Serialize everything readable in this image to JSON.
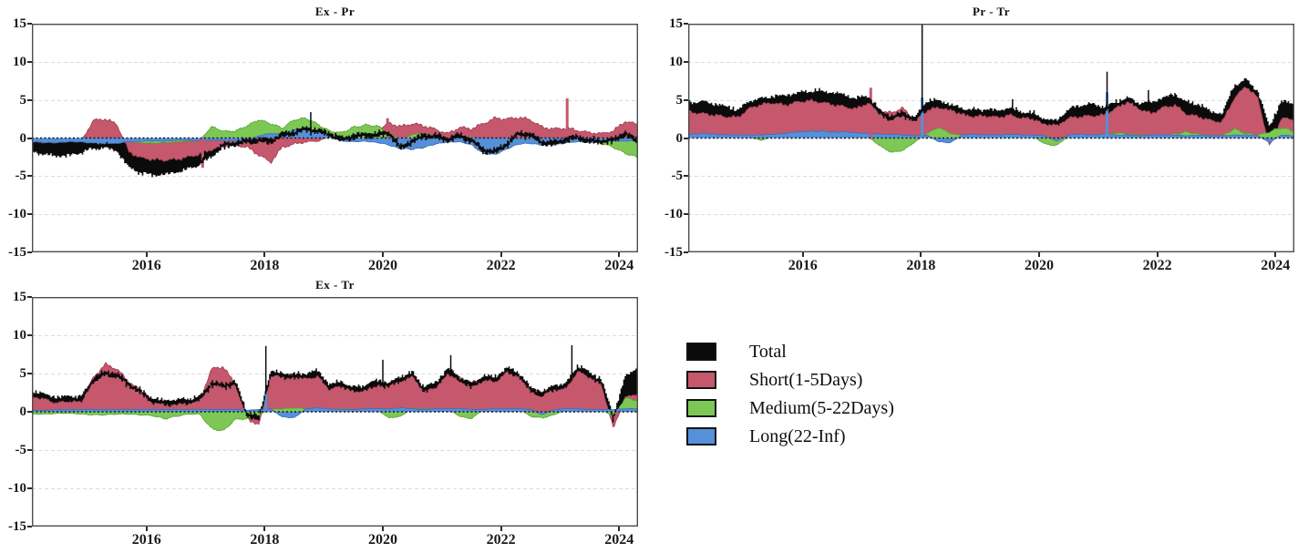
{
  "figure": {
    "background": "#ffffff"
  },
  "axes": {
    "y_tick_labels": [
      "15",
      "10",
      "5",
      "0",
      "-5",
      "-10",
      "-15"
    ],
    "y_tick_values": [
      15,
      10,
      5,
      0,
      -5,
      -10,
      -15
    ],
    "x_tick_labels": [
      "2016",
      "2018",
      "2020",
      "2022",
      "2024"
    ],
    "x_tick_values": [
      2016,
      2018,
      2020,
      2022,
      2024
    ],
    "grid_color": "#dcdcdc",
    "border_color": "#4d4d4d",
    "zero_line_color": "#17172e"
  },
  "legend": {
    "items": [
      {
        "label": "Total",
        "color": "#0b0b0b"
      },
      {
        "label": "Short(1-5Days)",
        "color": "#c5586c"
      },
      {
        "label": "Medium(5-22Days)",
        "color": "#7dc855"
      },
      {
        "label": "Long(22-Inf)",
        "color": "#5590d8"
      }
    ]
  },
  "chart_data": [
    {
      "panel": "Ex - Pr",
      "type": "area",
      "x_start": 2014.1,
      "x_step": 0.2,
      "xlim": [
        2014.06,
        2024.32
      ],
      "ylim": [
        -15,
        15
      ],
      "grid": true,
      "series": [
        {
          "name": "Total",
          "color": "#0b0b0b",
          "stroke": "#0b0b0b",
          "values": [
            -1.6,
            -1.9,
            -2.1,
            -2.0,
            -1.6,
            -1.1,
            -1.0,
            -1.4,
            -3.6,
            -4.3,
            -4.6,
            -4.5,
            -4.2,
            -3.8,
            -3.2,
            -2.2,
            -1.0,
            -0.7,
            -0.4,
            -0.3,
            -0.4,
            0.4,
            0.7,
            1.2,
            0.9,
            0.5,
            -0.2,
            0.2,
            0.4,
            0.4,
            0.7,
            -1.3,
            -0.4,
            0.3,
            0.2,
            -0.2,
            0.3,
            -0.3,
            -1.6,
            -1.8,
            -0.8,
            0.6,
            0.4,
            -0.6,
            -0.7,
            -0.2,
            0.1,
            -0.4,
            -0.4,
            -0.3,
            0.6,
            -0.4
          ]
        },
        {
          "name": "Short(1-5Days)",
          "color": "#c5586c",
          "stroke": "#9e3f52",
          "values": [
            -0.5,
            -0.6,
            -0.5,
            -0.4,
            -0.3,
            2.3,
            2.5,
            1.8,
            -1.8,
            -2.6,
            -2.8,
            -2.9,
            -2.8,
            -2.5,
            -2.1,
            -1.5,
            -1.1,
            -0.9,
            -1.2,
            -2.2,
            -3.2,
            -1.2,
            -0.8,
            -0.5,
            -0.4,
            0.2,
            -0.3,
            0.3,
            0.5,
            0.8,
            2.0,
            1.5,
            1.9,
            1.6,
            1.1,
            0.6,
            1.4,
            1.2,
            1.9,
            2.6,
            2.5,
            2.7,
            2.4,
            1.4,
            1.2,
            1.3,
            1.0,
            0.7,
            0.6,
            0.9,
            2.2,
            1.8
          ]
        },
        {
          "name": "Medium(5-22Days)",
          "color": "#7dc855",
          "stroke": "#58a135",
          "values": [
            -0.2,
            -0.2,
            -0.3,
            -0.2,
            -0.2,
            -0.3,
            -0.3,
            -0.4,
            -0.5,
            -0.6,
            -0.7,
            -0.6,
            -0.5,
            -0.4,
            -0.3,
            1.5,
            0.9,
            0.9,
            1.6,
            2.4,
            1.9,
            1.3,
            2.4,
            2.6,
            1.8,
            0.9,
            0.7,
            1.4,
            1.7,
            1.6,
            0.7,
            -0.4,
            0.5,
            0.5,
            0.3,
            -0.3,
            -0.3,
            0.2,
            -0.4,
            -0.4,
            -0.3,
            -0.4,
            -0.4,
            -0.4,
            -0.5,
            -0.4,
            -0.4,
            -0.5,
            -0.7,
            -1.2,
            -2.0,
            -2.5
          ]
        },
        {
          "name": "Long(22-Inf)",
          "color": "#5590d8",
          "stroke": "#3a6fb5",
          "values": [
            -0.5,
            -0.6,
            -0.6,
            -0.5,
            -0.5,
            -0.7,
            -0.8,
            -0.7,
            -0.5,
            -0.4,
            -0.4,
            -0.4,
            -0.3,
            -0.3,
            -0.3,
            -0.3,
            -0.3,
            -0.4,
            -0.4,
            0.3,
            0.6,
            0.5,
            1.1,
            1.2,
            0.8,
            0.3,
            -0.4,
            -0.5,
            -0.4,
            -0.6,
            -0.9,
            -1.4,
            -1.5,
            -1.2,
            -0.8,
            -0.5,
            -0.5,
            -0.9,
            -2.0,
            -2.2,
            -1.4,
            -0.8,
            -0.7,
            -0.9,
            -0.9,
            -0.6,
            -0.5,
            -0.6,
            -0.5,
            -0.4,
            -0.4,
            -0.3
          ]
        }
      ],
      "spikes": [
        {
          "t": 2016.95,
          "v": -3.9,
          "series": 1
        },
        {
          "t": 2018.78,
          "v": 3.4,
          "series": 0
        },
        {
          "t": 2020.08,
          "v": 2.6,
          "series": 1
        },
        {
          "t": 2023.12,
          "v": 5.2,
          "series": 1
        }
      ]
    },
    {
      "panel": "Pr - Tr",
      "type": "area",
      "x_start": 2014.1,
      "x_step": 0.2,
      "xlim": [
        2014.06,
        2024.32
      ],
      "ylim": [
        -15,
        15
      ],
      "grid": true,
      "series": [
        {
          "name": "Total",
          "color": "#0b0b0b",
          "stroke": "#0b0b0b",
          "values": [
            4.4,
            4.5,
            4.2,
            3.9,
            3.4,
            4.6,
            4.9,
            5.2,
            5.3,
            5.6,
            5.9,
            5.9,
            5.7,
            5.4,
            4.9,
            5.3,
            3.4,
            2.6,
            3.2,
            2.4,
            4.6,
            4.7,
            4.1,
            3.6,
            3.4,
            3.5,
            3.3,
            3.7,
            3.2,
            3.0,
            2.2,
            2.0,
            3.5,
            4.0,
            4.2,
            3.8,
            4.5,
            5.0,
            4.3,
            4.4,
            5.0,
            5.5,
            4.4,
            4.2,
            3.2,
            2.9,
            6.6,
            7.4,
            5.9,
            1.2,
            4.6,
            4.2
          ]
        },
        {
          "name": "Short(1-5Days)",
          "color": "#c5586c",
          "stroke": "#9e3f52",
          "values": [
            3.4,
            3.2,
            3.0,
            2.8,
            2.7,
            3.9,
            4.4,
            4.6,
            4.3,
            4.7,
            4.9,
            4.7,
            4.4,
            4.1,
            3.8,
            4.6,
            3.2,
            3.4,
            3.9,
            2.2,
            3.6,
            4.0,
            3.7,
            3.1,
            2.8,
            2.9,
            2.7,
            3.0,
            2.6,
            2.5,
            1.9,
            1.7,
            2.6,
            2.8,
            2.9,
            3.0,
            3.9,
            4.8,
            3.8,
            3.2,
            4.0,
            4.3,
            3.1,
            2.8,
            2.3,
            2.1,
            5.2,
            6.8,
            5.3,
            -1.2,
            2.6,
            2.4
          ]
        },
        {
          "name": "Medium(5-22Days)",
          "color": "#7dc855",
          "stroke": "#58a135",
          "values": [
            0.2,
            0.2,
            0.2,
            0.1,
            0.1,
            0.1,
            -0.3,
            0.2,
            0.2,
            0.2,
            0.3,
            0.4,
            0.5,
            0.5,
            0.4,
            0.2,
            -1.0,
            -1.9,
            -1.6,
            -0.5,
            0.6,
            1.4,
            0.6,
            0.3,
            0.2,
            0.2,
            0.3,
            0.2,
            0.3,
            0.2,
            -0.8,
            -1.0,
            0.3,
            0.3,
            0.4,
            0.3,
            0.7,
            0.5,
            0.4,
            0.3,
            0.4,
            0.5,
            0.8,
            0.5,
            0.3,
            0.3,
            1.2,
            0.6,
            0.4,
            0.8,
            1.4,
            0.9
          ]
        },
        {
          "name": "Long(22-Inf)",
          "color": "#5590d8",
          "stroke": "#3a6fb5",
          "values": [
            0.5,
            0.6,
            0.5,
            0.4,
            0.4,
            0.4,
            0.4,
            0.5,
            0.6,
            0.8,
            0.9,
            0.9,
            0.8,
            0.8,
            0.7,
            0.6,
            0.5,
            0.5,
            0.4,
            0.3,
            0.4,
            -0.5,
            -0.6,
            0.4,
            0.5,
            0.4,
            0.4,
            0.5,
            0.4,
            0.4,
            0.3,
            -0.4,
            0.4,
            0.5,
            0.4,
            0.5,
            0.4,
            0.4,
            0.3,
            0.4,
            0.4,
            0.4,
            0.3,
            0.4,
            0.3,
            0.3,
            0.4,
            0.4,
            0.3,
            -0.6,
            0.4,
            0.3
          ]
        }
      ],
      "spikes": [
        {
          "t": 2017.15,
          "v": 6.6,
          "series": 1
        },
        {
          "t": 2018.02,
          "v": 15.8,
          "series": 0
        },
        {
          "t": 2018.02,
          "v": 5.3,
          "series": 3
        },
        {
          "t": 2019.55,
          "v": 5.1,
          "series": 0
        },
        {
          "t": 2021.15,
          "v": 8.7,
          "series": 0
        },
        {
          "t": 2021.15,
          "v": 6.0,
          "series": 3
        },
        {
          "t": 2021.85,
          "v": 6.3,
          "series": 0
        }
      ]
    },
    {
      "panel": "Ex - Tr",
      "type": "area",
      "x_start": 2014.1,
      "x_step": 0.2,
      "xlim": [
        2014.06,
        2024.32
      ],
      "ylim": [
        -15,
        15
      ],
      "grid": true,
      "series": [
        {
          "name": "Total",
          "color": "#0b0b0b",
          "stroke": "#0b0b0b",
          "values": [
            2.4,
            2.0,
            1.6,
            1.8,
            1.7,
            4.2,
            5.0,
            4.8,
            3.6,
            2.6,
            1.5,
            1.2,
            1.3,
            1.4,
            1.7,
            3.7,
            3.4,
            3.8,
            -0.3,
            -0.9,
            5.0,
            4.8,
            4.6,
            4.8,
            5.1,
            3.3,
            3.7,
            2.9,
            3.2,
            3.9,
            3.5,
            4.3,
            4.9,
            3.0,
            3.6,
            5.4,
            4.3,
            3.4,
            4.4,
            4.3,
            5.5,
            4.9,
            2.9,
            2.3,
            3.2,
            3.4,
            5.8,
            4.9,
            4.0,
            -0.8,
            4.2,
            5.6
          ]
        },
        {
          "name": "Short(1-5Days)",
          "color": "#c5586c",
          "stroke": "#9e3f52",
          "values": [
            2.0,
            1.6,
            1.2,
            1.4,
            1.3,
            4.5,
            6.2,
            5.6,
            3.9,
            2.8,
            1.4,
            1.1,
            1.0,
            1.2,
            1.5,
            5.6,
            5.9,
            3.6,
            -0.8,
            -1.8,
            4.6,
            5.0,
            4.7,
            4.3,
            4.6,
            2.9,
            3.4,
            2.6,
            2.8,
            3.4,
            3.6,
            4.4,
            4.6,
            2.6,
            3.2,
            4.9,
            4.4,
            3.8,
            4.2,
            3.9,
            5.2,
            4.6,
            3.0,
            2.6,
            3.1,
            3.0,
            5.3,
            4.5,
            3.6,
            -2.2,
            1.8,
            2.4
          ]
        },
        {
          "name": "Medium(5-22Days)",
          "color": "#7dc855",
          "stroke": "#58a135",
          "values": [
            -0.3,
            -0.3,
            -0.2,
            -0.2,
            -0.3,
            -0.4,
            -0.4,
            -0.3,
            -0.3,
            -0.4,
            -0.5,
            -0.9,
            -0.6,
            -0.3,
            -0.3,
            -2.2,
            -2.5,
            -1.0,
            -0.9,
            -0.4,
            0.3,
            0.4,
            0.5,
            0.4,
            0.3,
            0.3,
            0.4,
            0.3,
            0.4,
            0.3,
            -0.8,
            -0.6,
            0.4,
            0.4,
            0.3,
            0.4,
            -0.6,
            -0.9,
            0.3,
            0.4,
            0.3,
            0.4,
            -0.6,
            -0.8,
            -0.4,
            0.3,
            0.4,
            0.3,
            0.3,
            -0.6,
            1.8,
            1.5
          ]
        },
        {
          "name": "Long(22-Inf)",
          "color": "#5590d8",
          "stroke": "#3a6fb5",
          "values": [
            0.2,
            0.2,
            0.3,
            0.3,
            0.3,
            0.3,
            0.3,
            0.3,
            0.3,
            0.3,
            0.3,
            0.3,
            0.3,
            0.3,
            0.3,
            0.3,
            0.3,
            0.3,
            0.2,
            0.3,
            0.4,
            -0.7,
            -0.8,
            0.4,
            0.5,
            0.4,
            0.3,
            0.3,
            0.4,
            0.4,
            0.4,
            0.5,
            0.4,
            0.3,
            0.4,
            0.4,
            0.4,
            0.3,
            0.3,
            0.4,
            0.4,
            0.4,
            0.3,
            -0.4,
            0.3,
            0.4,
            0.4,
            0.3,
            0.3,
            0.3,
            0.4,
            0.4
          ]
        }
      ],
      "spikes": [
        {
          "t": 2018.02,
          "v": 8.6,
          "series": 0
        },
        {
          "t": 2018.02,
          "v": 2.6,
          "series": 3
        },
        {
          "t": 2020.0,
          "v": 6.8,
          "series": 0
        },
        {
          "t": 2021.15,
          "v": 7.4,
          "series": 0
        },
        {
          "t": 2023.2,
          "v": 8.7,
          "series": 0
        }
      ]
    }
  ]
}
